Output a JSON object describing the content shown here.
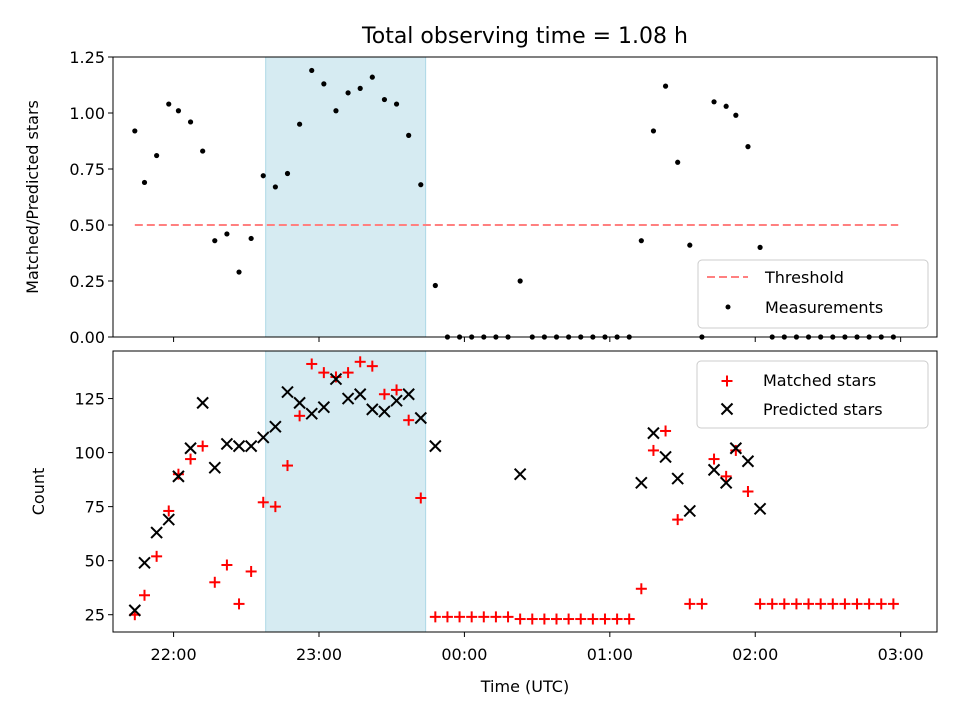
{
  "chart_data": [
    {
      "type": "scatter",
      "title": "Total observing time = 1.08 h",
      "ylabel": "Matched/Predicted stars",
      "xlim": [
        "21:35",
        "03:15"
      ],
      "ylim": [
        0,
        1.25
      ],
      "yticks": [
        0.0,
        0.25,
        0.5,
        0.75,
        1.0,
        1.25
      ],
      "ytick_labels": [
        "0.00",
        "0.25",
        "0.50",
        "0.75",
        "1.00",
        "1.25"
      ],
      "highlight_span": [
        "22:38",
        "23:44"
      ],
      "threshold": {
        "name": "Threshold",
        "value": 0.5,
        "x_range": [
          "21:44",
          "02:59"
        ],
        "color": "#ff8080"
      },
      "legend_location": "lower right",
      "series": [
        {
          "name": "Measurements",
          "color": "#000000",
          "marker": "dot",
          "points": [
            [
              "21:44",
              0.92
            ],
            [
              "21:48",
              0.69
            ],
            [
              "21:53",
              0.81
            ],
            [
              "21:58",
              1.04
            ],
            [
              "22:02",
              1.01
            ],
            [
              "22:07",
              0.96
            ],
            [
              "22:12",
              0.83
            ],
            [
              "22:17",
              0.43
            ],
            [
              "22:22",
              0.46
            ],
            [
              "22:27",
              0.29
            ],
            [
              "22:32",
              0.44
            ],
            [
              "22:37",
              0.72
            ],
            [
              "22:42",
              0.67
            ],
            [
              "22:47",
              0.73
            ],
            [
              "22:52",
              0.95
            ],
            [
              "22:57",
              1.19
            ],
            [
              "23:02",
              1.13
            ],
            [
              "23:07",
              1.01
            ],
            [
              "23:12",
              1.09
            ],
            [
              "23:17",
              1.11
            ],
            [
              "23:22",
              1.16
            ],
            [
              "23:27",
              1.06
            ],
            [
              "23:32",
              1.04
            ],
            [
              "23:37",
              0.9
            ],
            [
              "23:42",
              0.68
            ],
            [
              "23:48",
              0.23
            ],
            [
              "23:53",
              0.0
            ],
            [
              "23:58",
              0.0
            ],
            [
              "00:03",
              0.0
            ],
            [
              "00:08",
              0.0
            ],
            [
              "00:13",
              0.0
            ],
            [
              "00:18",
              0.0
            ],
            [
              "00:23",
              0.25
            ],
            [
              "00:28",
              0.0
            ],
            [
              "00:33",
              0.0
            ],
            [
              "00:38",
              0.0
            ],
            [
              "00:43",
              0.0
            ],
            [
              "00:48",
              0.0
            ],
            [
              "00:53",
              0.0
            ],
            [
              "00:58",
              0.0
            ],
            [
              "01:03",
              0.0
            ],
            [
              "01:08",
              0.0
            ],
            [
              "01:13",
              0.43
            ],
            [
              "01:18",
              0.92
            ],
            [
              "01:23",
              1.12
            ],
            [
              "01:28",
              0.78
            ],
            [
              "01:33",
              0.41
            ],
            [
              "01:38",
              0.0
            ],
            [
              "01:43",
              1.05
            ],
            [
              "01:48",
              1.03
            ],
            [
              "01:52",
              0.99
            ],
            [
              "01:57",
              0.85
            ],
            [
              "02:02",
              0.4
            ],
            [
              "02:07",
              0.0
            ],
            [
              "02:12",
              0.0
            ],
            [
              "02:17",
              0.0
            ],
            [
              "02:22",
              0.0
            ],
            [
              "02:27",
              0.0
            ],
            [
              "02:32",
              0.0
            ],
            [
              "02:37",
              0.0
            ],
            [
              "02:42",
              0.0
            ],
            [
              "02:47",
              0.0
            ],
            [
              "02:52",
              0.0
            ],
            [
              "02:57",
              0.0
            ]
          ]
        }
      ]
    },
    {
      "type": "scatter",
      "xlabel": "Time (UTC)",
      "ylabel": "Count",
      "xlim": [
        "21:35",
        "03:15"
      ],
      "ylim": [
        17,
        147
      ],
      "xticks": [
        "22:00",
        "23:00",
        "00:00",
        "01:00",
        "02:00",
        "03:00"
      ],
      "yticks": [
        25,
        50,
        75,
        100,
        125
      ],
      "ytick_labels": [
        "25",
        "50",
        "75",
        "100",
        "125"
      ],
      "highlight_span": [
        "22:38",
        "23:44"
      ],
      "legend_location": "upper right",
      "series": [
        {
          "name": "Matched stars",
          "color": "#ff0000",
          "marker": "plus",
          "points": [
            [
              "21:44",
              25
            ],
            [
              "21:48",
              34
            ],
            [
              "21:53",
              52
            ],
            [
              "21:58",
              73
            ],
            [
              "22:02",
              90
            ],
            [
              "22:07",
              97
            ],
            [
              "22:12",
              103
            ],
            [
              "22:17",
              40
            ],
            [
              "22:22",
              48
            ],
            [
              "22:27",
              30
            ],
            [
              "22:32",
              45
            ],
            [
              "22:37",
              77
            ],
            [
              "22:42",
              75
            ],
            [
              "22:47",
              94
            ],
            [
              "22:52",
              117
            ],
            [
              "22:57",
              141
            ],
            [
              "23:02",
              137
            ],
            [
              "23:07",
              135
            ],
            [
              "23:12",
              137
            ],
            [
              "23:17",
              142
            ],
            [
              "23:22",
              140
            ],
            [
              "23:27",
              127
            ],
            [
              "23:32",
              129
            ],
            [
              "23:37",
              115
            ],
            [
              "23:42",
              79
            ],
            [
              "23:48",
              24
            ],
            [
              "23:53",
              24
            ],
            [
              "23:58",
              24
            ],
            [
              "00:03",
              24
            ],
            [
              "00:08",
              24
            ],
            [
              "00:13",
              24
            ],
            [
              "00:18",
              24
            ],
            [
              "00:23",
              23
            ],
            [
              "00:28",
              23
            ],
            [
              "00:33",
              23
            ],
            [
              "00:38",
              23
            ],
            [
              "00:43",
              23
            ],
            [
              "00:48",
              23
            ],
            [
              "00:53",
              23
            ],
            [
              "00:58",
              23
            ],
            [
              "01:03",
              23
            ],
            [
              "01:08",
              23
            ],
            [
              "01:13",
              37
            ],
            [
              "01:18",
              101
            ],
            [
              "01:23",
              110
            ],
            [
              "01:28",
              69
            ],
            [
              "01:33",
              30
            ],
            [
              "01:38",
              30
            ],
            [
              "01:43",
              97
            ],
            [
              "01:48",
              89
            ],
            [
              "01:52",
              101
            ],
            [
              "01:57",
              82
            ],
            [
              "02:02",
              30
            ],
            [
              "02:07",
              30
            ],
            [
              "02:12",
              30
            ],
            [
              "02:17",
              30
            ],
            [
              "02:22",
              30
            ],
            [
              "02:27",
              30
            ],
            [
              "02:32",
              30
            ],
            [
              "02:37",
              30
            ],
            [
              "02:42",
              30
            ],
            [
              "02:47",
              30
            ],
            [
              "02:52",
              30
            ],
            [
              "02:57",
              30
            ]
          ]
        },
        {
          "name": "Predicted stars",
          "color": "#000000",
          "marker": "x",
          "points": [
            [
              "21:44",
              27
            ],
            [
              "21:48",
              49
            ],
            [
              "21:53",
              63
            ],
            [
              "21:58",
              69
            ],
            [
              "22:02",
              89
            ],
            [
              "22:07",
              102
            ],
            [
              "22:12",
              123
            ],
            [
              "22:17",
              93
            ],
            [
              "22:22",
              104
            ],
            [
              "22:27",
              103
            ],
            [
              "22:32",
              103
            ],
            [
              "22:37",
              107
            ],
            [
              "22:42",
              112
            ],
            [
              "22:47",
              128
            ],
            [
              "22:52",
              123
            ],
            [
              "22:57",
              118
            ],
            [
              "23:02",
              121
            ],
            [
              "23:07",
              134
            ],
            [
              "23:12",
              125
            ],
            [
              "23:17",
              127
            ],
            [
              "23:22",
              120
            ],
            [
              "23:27",
              119
            ],
            [
              "23:32",
              124
            ],
            [
              "23:37",
              127
            ],
            [
              "23:42",
              116
            ],
            [
              "23:48",
              103
            ],
            [
              "00:23",
              90
            ],
            [
              "01:13",
              86
            ],
            [
              "01:18",
              109
            ],
            [
              "01:23",
              98
            ],
            [
              "01:28",
              88
            ],
            [
              "01:33",
              73
            ],
            [
              "01:43",
              92
            ],
            [
              "01:48",
              86
            ],
            [
              "01:52",
              102
            ],
            [
              "01:57",
              96
            ],
            [
              "02:02",
              74
            ]
          ]
        }
      ]
    }
  ]
}
